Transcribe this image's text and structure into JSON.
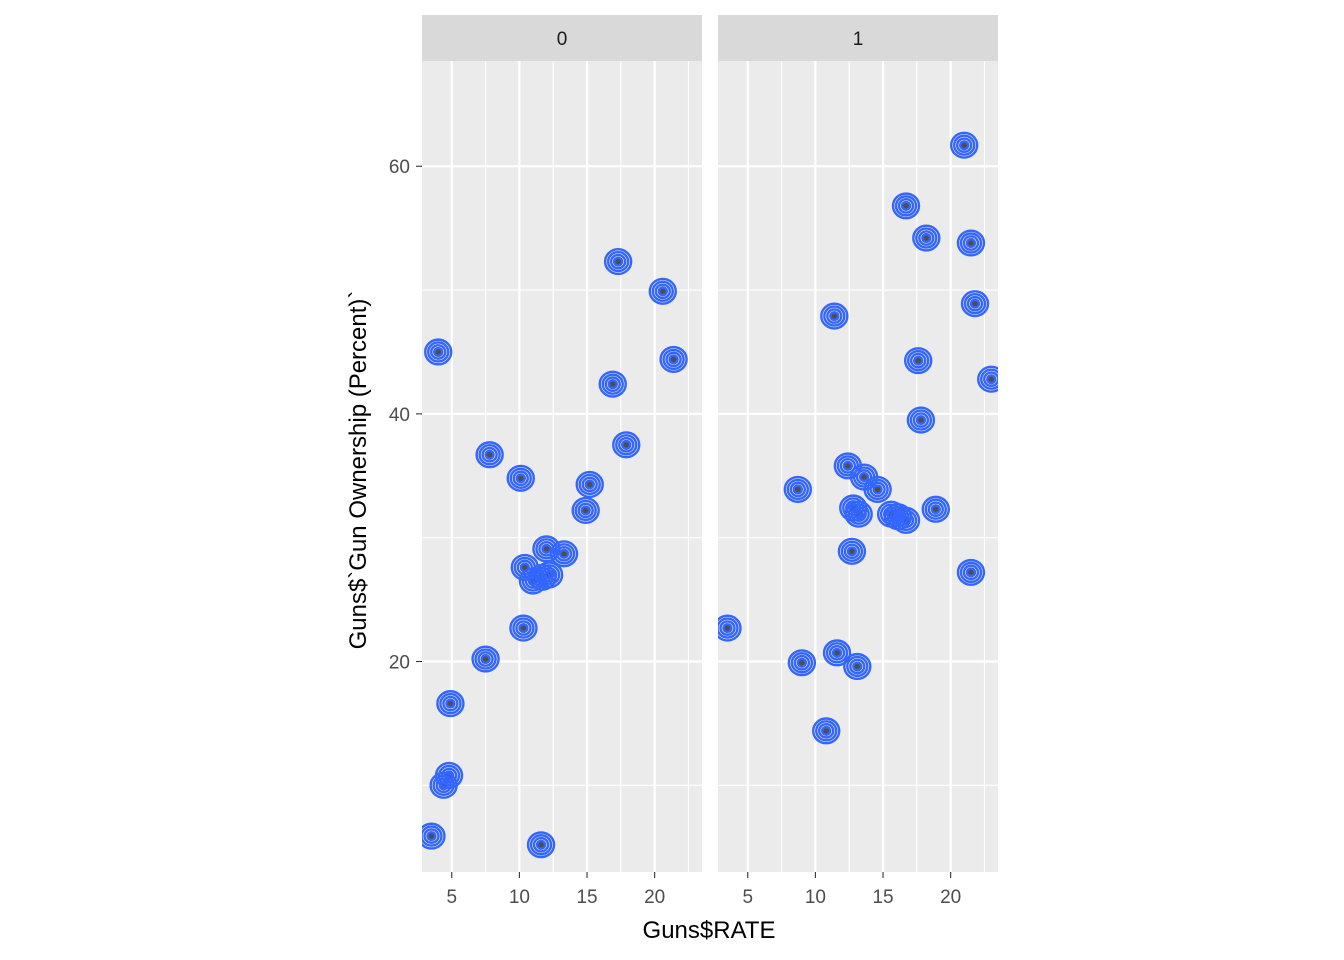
{
  "chart_data": {
    "type": "scatter",
    "xlabel": "Guns$RATE",
    "ylabel": "Guns$`Gun Ownership (Percent)`",
    "xlim": [
      2.8,
      23.5
    ],
    "ylim": [
      3,
      68.5
    ],
    "x_ticks": [
      5,
      10,
      15,
      20
    ],
    "y_ticks": [
      20,
      40,
      60
    ],
    "grid": true,
    "overlay": "2d-density-contours",
    "colors": {
      "point": "#333333",
      "contour": "#3366ff",
      "panel_background": "#ebebeb",
      "strip_background": "#d9d9d9",
      "grid": "#ffffff"
    },
    "panels": [
      {
        "label": "0",
        "points": [
          [
            3.5,
            5.9
          ],
          [
            4.0,
            45.0
          ],
          [
            4.4,
            10.0
          ],
          [
            4.8,
            10.8
          ],
          [
            4.9,
            16.6
          ],
          [
            7.5,
            20.2
          ],
          [
            7.8,
            36.7
          ],
          [
            10.1,
            34.8
          ],
          [
            10.3,
            22.7
          ],
          [
            10.4,
            27.6
          ],
          [
            11.0,
            26.5
          ],
          [
            11.6,
            5.2
          ],
          [
            11.7,
            26.8
          ],
          [
            12.0,
            29.1
          ],
          [
            12.2,
            27.0
          ],
          [
            13.3,
            28.7
          ],
          [
            14.9,
            32.2
          ],
          [
            15.2,
            34.3
          ],
          [
            16.9,
            42.4
          ],
          [
            17.3,
            52.3
          ],
          [
            17.9,
            37.5
          ],
          [
            20.6,
            49.9
          ],
          [
            21.4,
            44.4
          ]
        ]
      },
      {
        "label": "1",
        "points": [
          [
            3.5,
            22.7
          ],
          [
            8.7,
            33.9
          ],
          [
            9.0,
            19.9
          ],
          [
            10.8,
            14.4
          ],
          [
            11.4,
            47.9
          ],
          [
            11.6,
            20.7
          ],
          [
            12.4,
            35.8
          ],
          [
            12.7,
            28.9
          ],
          [
            12.8,
            32.4
          ],
          [
            13.1,
            19.6
          ],
          [
            13.2,
            31.9
          ],
          [
            13.6,
            34.9
          ],
          [
            14.6,
            33.9
          ],
          [
            15.6,
            31.9
          ],
          [
            16.1,
            31.7
          ],
          [
            16.7,
            56.8
          ],
          [
            16.7,
            31.4
          ],
          [
            17.6,
            44.3
          ],
          [
            17.8,
            39.5
          ],
          [
            18.2,
            54.2
          ],
          [
            18.9,
            32.3
          ],
          [
            21.0,
            61.7
          ],
          [
            21.5,
            53.8
          ],
          [
            21.5,
            27.2
          ],
          [
            21.8,
            48.9
          ],
          [
            23.0,
            42.8
          ]
        ]
      }
    ]
  }
}
